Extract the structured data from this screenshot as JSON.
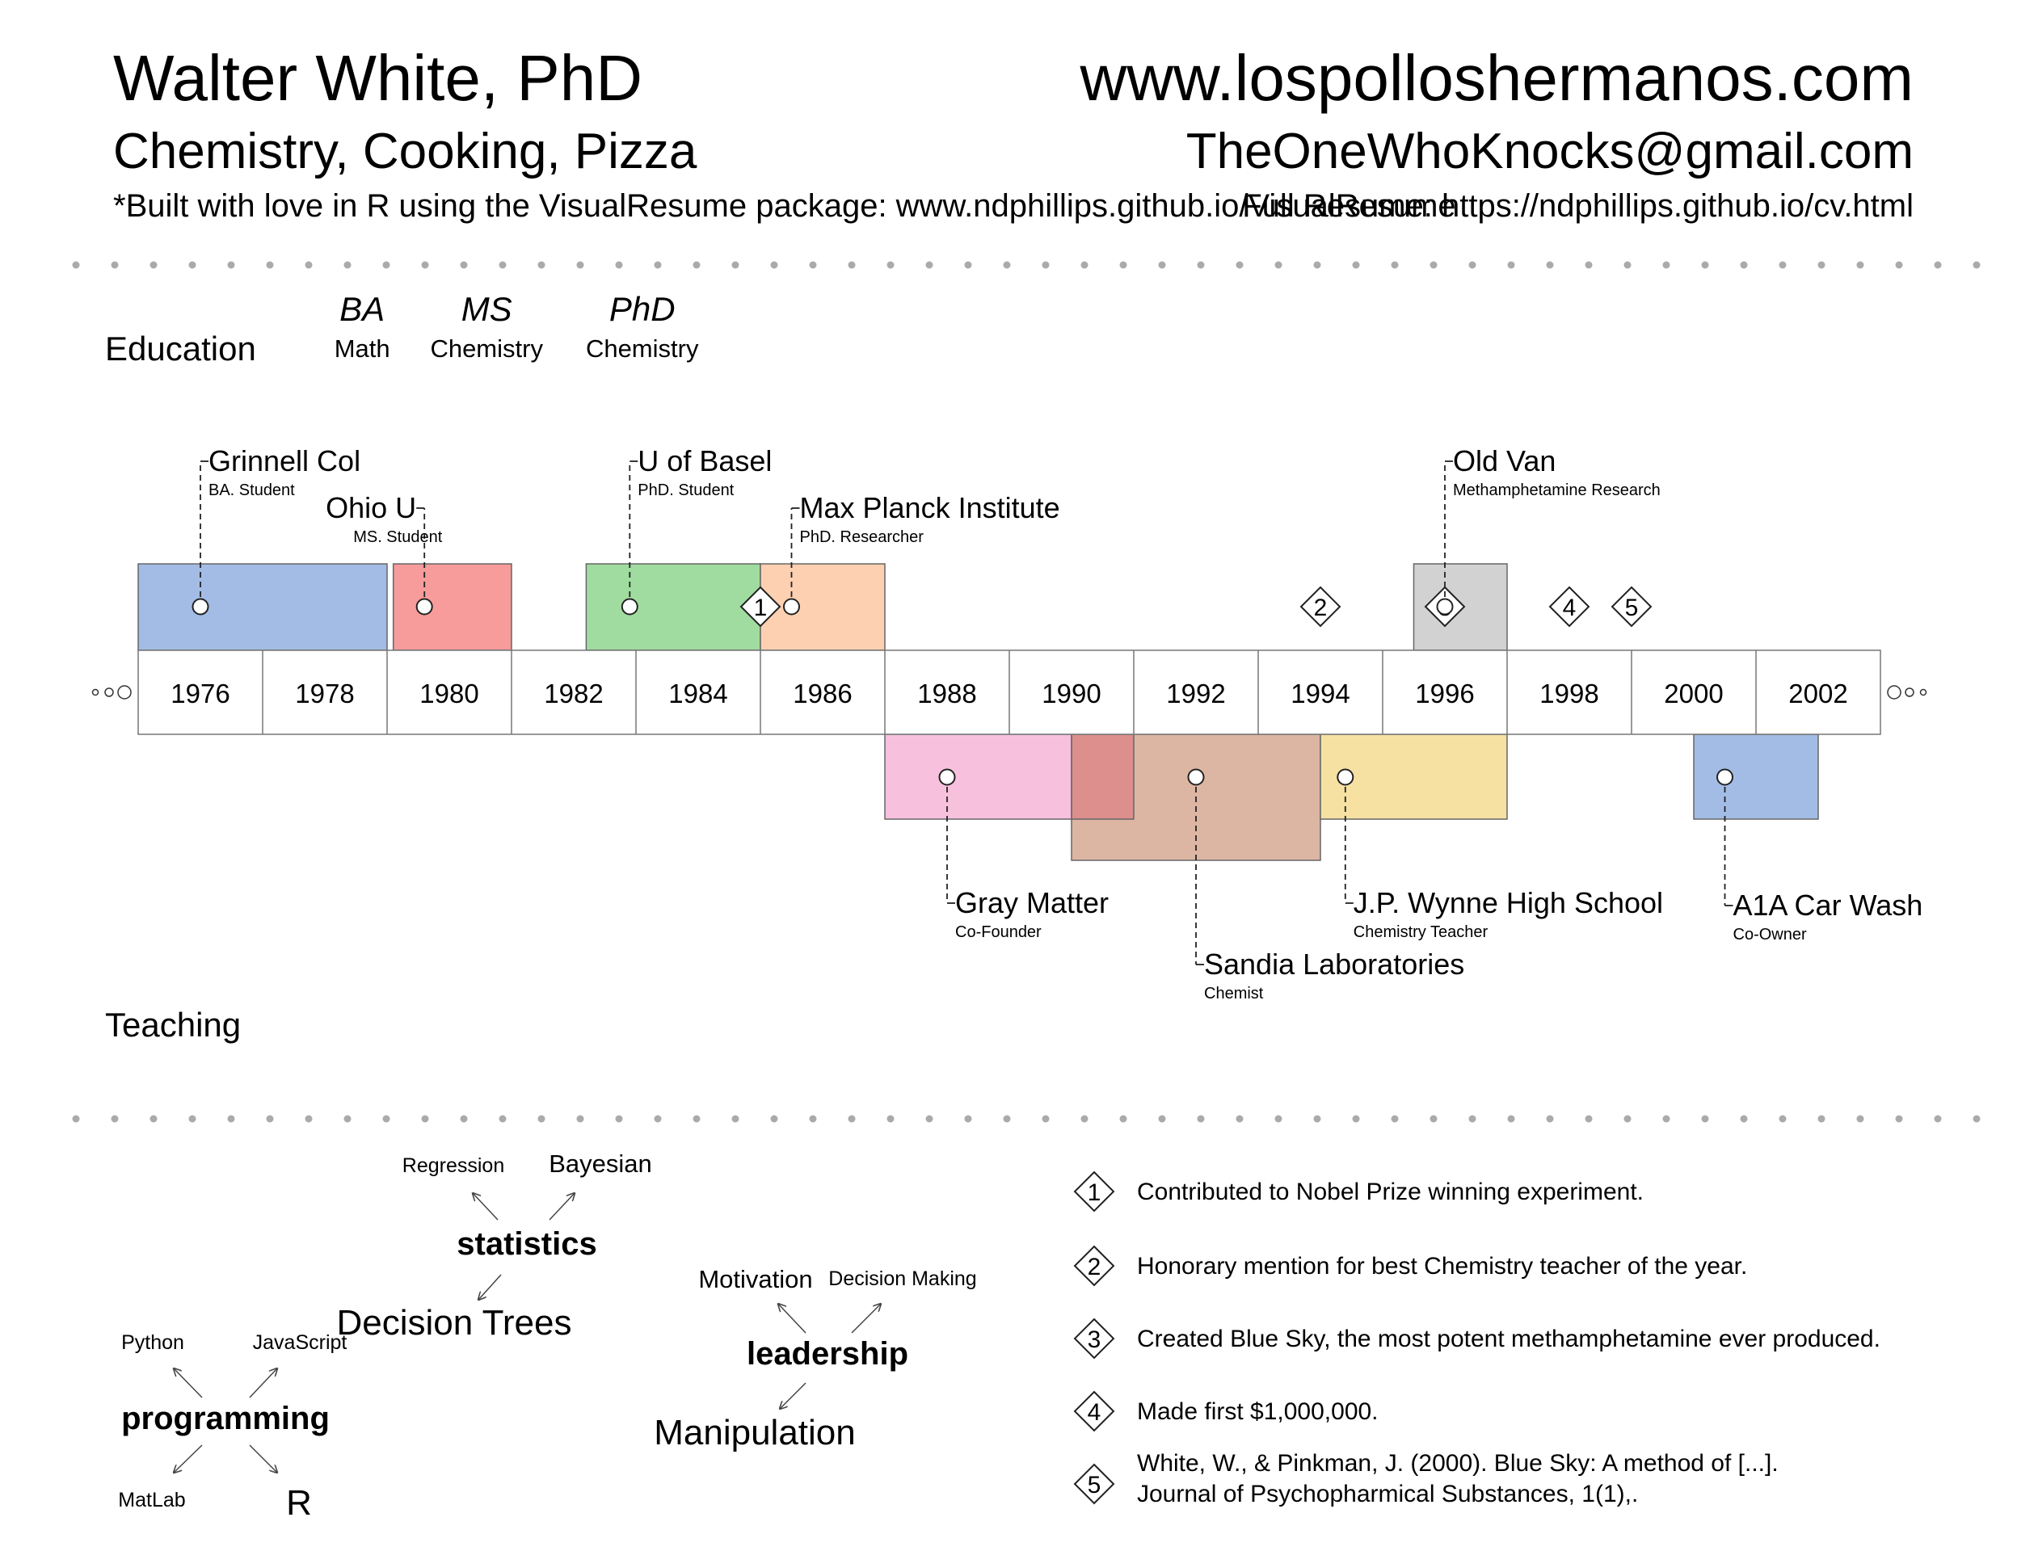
{
  "header": {
    "name": "Walter White, PhD",
    "tagline": "Chemistry, Cooking, Pizza",
    "built_note": "*Built with love in R using the VisualResume package: www.ndphillips.github.io/VisualResume",
    "website": "www.lospolloshermanos.com",
    "email": "TheOneWhoKnocks@gmail.com",
    "full_resume": "Full Resume: https://ndphillips.github.io/cv.html"
  },
  "chart_data": {
    "type": "timeline",
    "title": "",
    "xlabel": "",
    "ylabel": "",
    "xlim": [
      1975,
      2003
    ],
    "year_ticks": [
      1976,
      1978,
      1980,
      1982,
      1984,
      1986,
      1988,
      1990,
      1992,
      1994,
      1996,
      1998,
      2000,
      2002
    ],
    "rows": {
      "top": "Education",
      "bottom": "Teaching"
    },
    "degrees": [
      {
        "degree": "BA",
        "field": "Math",
        "year": 1978.6
      },
      {
        "degree": "MS",
        "field": "Chemistry",
        "year": 1980.6
      },
      {
        "degree": "PhD",
        "field": "Chemistry",
        "year": 1983.1
      }
    ],
    "top_periods": [
      {
        "name": "Grinnell Col",
        "role": "BA. Student",
        "start": 1975,
        "end": 1979,
        "dot": 1976,
        "color": "#a2bce5"
      },
      {
        "name": "Ohio U",
        "role": "MS. Student",
        "start": 1979.1,
        "end": 1981,
        "dot": 1979.6,
        "color": "#f79b9b"
      },
      {
        "name": "U of Basel",
        "role": "PhD. Student",
        "start": 1982.2,
        "end": 1985,
        "dot": 1982.9,
        "color": "#a0dca0"
      },
      {
        "name": "Max Planck Institute",
        "role": "PhD. Researcher",
        "start": 1985,
        "end": 1987,
        "dot": 1985.5,
        "color": "#fdd0b1"
      },
      {
        "name": "Old Van",
        "role": "Methamphetamine Research",
        "start": 1995.5,
        "end": 1997,
        "dot": 1996,
        "color": "#d2d2d2"
      }
    ],
    "bottom_periods": [
      {
        "name": "Gray Matter",
        "role": "Co-Founder",
        "start": 1987,
        "end": 1991,
        "dot": 1988,
        "color": "#f7c1dd"
      },
      {
        "name": "Sandia Laboratories",
        "role": "Chemist",
        "start": 1990,
        "end": 1994,
        "dot": 1992,
        "color": "#ddb6a3"
      },
      {
        "name": "J.P. Wynne High School",
        "role": "Chemistry Teacher",
        "start": 1994,
        "end": 1997,
        "dot": 1994.4,
        "color": "#f6e1a3"
      },
      {
        "name": "A1A Car Wash",
        "role": "Co-Owner",
        "start": 2000,
        "end": 2002,
        "dot": 2000.5,
        "color": "#a2bce5"
      }
    ],
    "overlap_color": "#dc8f8c",
    "events": [
      {
        "id": "1",
        "year": 1985,
        "text": "Contributed to Nobel Prize winning experiment."
      },
      {
        "id": "2",
        "year": 1994,
        "text": "Honorary mention for best Chemistry teacher of the year."
      },
      {
        "id": "3",
        "year": 1996,
        "text": "Created Blue Sky, the most potent methamphetamine ever produced."
      },
      {
        "id": "4",
        "year": 1998,
        "text": "Made first $1,000,000."
      },
      {
        "id": "5",
        "year": 1999,
        "text": "White, W., & Pinkman, J. (2000). Blue Sky: A method of [...]. Journal of Psychopharmical Substances, 1(1),."
      }
    ],
    "skills": [
      {
        "name": "statistics",
        "subs": [
          {
            "label": "Regression",
            "size": "small"
          },
          {
            "label": "Bayesian",
            "size": "medium"
          },
          {
            "label": "Decision Trees",
            "size": "large"
          }
        ]
      },
      {
        "name": "leadership",
        "subs": [
          {
            "label": "Motivation",
            "size": "medium"
          },
          {
            "label": "Decision Making",
            "size": "small"
          },
          {
            "label": "Manipulation",
            "size": "large"
          }
        ]
      },
      {
        "name": "programming",
        "subs": [
          {
            "label": "Python",
            "size": "small"
          },
          {
            "label": "JavaScript",
            "size": "small"
          },
          {
            "label": "MatLab",
            "size": "small"
          },
          {
            "label": "R",
            "size": "large"
          }
        ]
      }
    ]
  }
}
